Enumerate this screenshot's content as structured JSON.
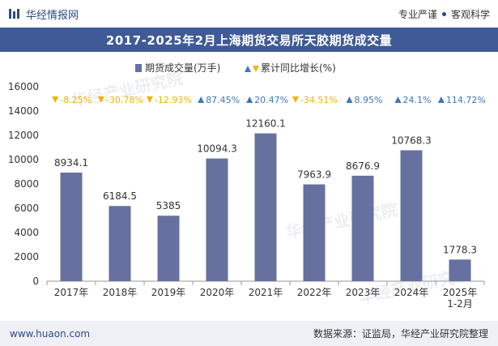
{
  "header": {
    "brand": "华经情报网",
    "tag1": "专业严谨",
    "tag2": "客观科学"
  },
  "title": "2017-2025年2月上海期货交易所天胶期货成交量",
  "chart_data": {
    "type": "bar+markers",
    "categories": [
      "2017年",
      "2018年",
      "2019年",
      "2020年",
      "2021年",
      "2022年",
      "2023年",
      "2024年",
      "2025年\n1-2月"
    ],
    "series": [
      {
        "name": "期货成交量(万手)",
        "type": "bar",
        "values": [
          8934.1,
          6184.5,
          5385,
          10094.3,
          12160.1,
          7963.9,
          8676.9,
          10768.3,
          1778.3
        ],
        "value_labels": [
          "8934.1",
          "6184.5",
          "5385",
          "10094.3",
          "12160.1",
          "7963.9",
          "8676.9",
          "10768.3",
          "1778.3"
        ],
        "color": "#66719f"
      },
      {
        "name": "累计同比增长(%)",
        "type": "marker",
        "values": [
          -8.25,
          -30.78,
          -12.93,
          87.45,
          20.47,
          -34.51,
          8.95,
          24.1,
          114.72
        ],
        "value_labels": [
          "-8.25%",
          "-30.78%",
          "-12.93%",
          "87.45%",
          "20.47%",
          "-34.51%",
          "8.95%",
          "24.1%",
          "114.72%"
        ],
        "up_color": "#3d78b4",
        "down_color": "#f0b400"
      }
    ],
    "ylim": [
      0,
      16000
    ],
    "yticks": [
      0,
      2000,
      4000,
      6000,
      8000,
      10000,
      12000,
      14000,
      16000
    ],
    "legend": {
      "position": "top",
      "bar_label": "期货成交量(万手)",
      "marker_label": "累计同比增长(%)"
    },
    "grid": false
  },
  "watermark": "华经产业研究院",
  "footer": {
    "site": "www.huaon.com",
    "source": "数据来源：证监局，华经产业研究院整理"
  }
}
